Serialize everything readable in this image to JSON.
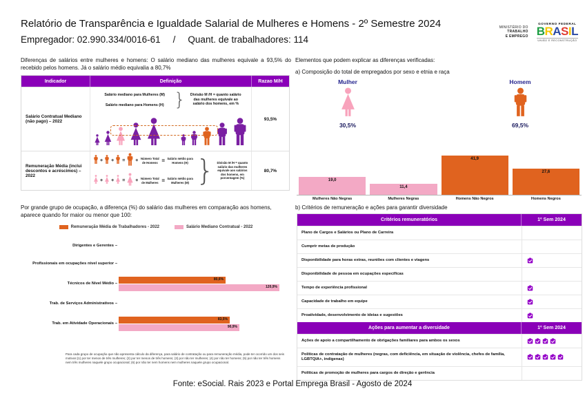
{
  "colors": {
    "header_purple": "#8A00B8",
    "figure_purple": "#7A1FA2",
    "pink": "#F8A3BC",
    "pink_bar": "#F3A9C5",
    "orange": "#E0631F",
    "navy": "#26268F",
    "dashed_box": "#D2691E",
    "mark_purple": "#9400C8"
  },
  "header": {
    "title": "Relatório de Transparência e Igualdade Salarial de Mulheres e Homens - 2º Semestre 2024",
    "employer": "Empregador: 02.990.334/0016-61",
    "slash": "/",
    "workers": "Quant. de trabalhadores: 114",
    "ministry_lines": [
      "MINISTÉRIO DO",
      "TRABALHO",
      "E EMPREGO"
    ],
    "gov_top": "GOVERNO FEDERAL",
    "gov_brand_letters": [
      {
        "ch": "B",
        "color": "#1E9E43"
      },
      {
        "ch": "R",
        "color": "#F6C700"
      },
      {
        "ch": "A",
        "color": "#2B49A3"
      },
      {
        "ch": "S",
        "color": "#E03C31"
      },
      {
        "ch": "I",
        "color": "#F6C700"
      },
      {
        "ch": "L",
        "color": "#2B49A3"
      }
    ],
    "gov_bottom": "UNIÃO E RECONSTRUÇÃO"
  },
  "left": {
    "intro": "Diferenças de salários entre mulheres e homens: O salário mediano das mulheres equivale a 93,5% do recebido pelos homens. Já o salário médio equivalia a 80,7%",
    "indicator_table": {
      "headers": [
        "Indicador",
        "Definição",
        "Razao M/H"
      ],
      "row1": {
        "indicator": "Salário Contratual Mediano (não pago) – 2022",
        "line_women": "Salário mediano para Mulheres (M)",
        "line_men": "Salário mediano para Homens (H)",
        "note": "Divisão M /H = quanto salário das mulheres equivale ao salário dos homens, em %",
        "ratio": "93,5%",
        "women_colors": [
          "#7A1FA2",
          "#7A1FA2",
          "#F8A3BC",
          "#7A1FA2",
          "#7A1FA2"
        ],
        "men_colors": [
          "#7A1FA2",
          "#7A1FA2",
          "#E0631F",
          "#7A1FA2",
          "#7A1FA2"
        ]
      },
      "row2": {
        "indicator": "Remuneração Média (inclui descontos e acréscimos) – 2022",
        "men": {
          "count": 3,
          "color": "#E0631F",
          "divisor": "Número Total de Homens",
          "result": "Salário médio para Homens (H)"
        },
        "women": {
          "count": 3,
          "color": "#F8A3BC",
          "divisor": "Número Total de Mulheres",
          "result": "Salário médio para Mulheres (M)"
        },
        "note": "Divisão M /H = quanto salário das mulheres equivale aos salários dos homens, em porcentagem (%)",
        "ratio": "80,7%"
      }
    },
    "occupation": {
      "heading": "Por grande grupo de ocupação, a diferença (%) do salário das mulheres em comparação aos homens, aparece quando for maior ou menor que 100:",
      "footnote": "Para cada grupo de ocupação que não apresenta cálculo da diferença, para salário de contratação ou para remuneração média, pode ter ocorrido um dos seis motivos:(1) por ter menos de três mulheres; (2) por ter menos de três homens; (3) por não ter mulheres; (4) por não ter homens; (5) por não ter três homens nem três mulheres naquele grupo ocupacional; (6) por não ter nem homens nem mulheres naquele grupo ocupacional."
    }
  },
  "right": {
    "elements_heading": "Elementos que podem explicar as diferenças verificadas:",
    "a_heading": "a) Composição do total de empregados por sexo e etnia e raça",
    "mulher": {
      "label": "Mulher",
      "pct": "30,5%"
    },
    "homem": {
      "label": "Homem",
      "pct": "69,5%"
    },
    "b_heading": "b) Critérios de remuneração e ações para garantir diversidade",
    "criteria_table": {
      "title": "Critérios remuneratórios",
      "period": "1º Sem 2024",
      "rows": [
        {
          "label": "Plano de Cargos e Salários ou Plano de Carreira",
          "marks": 0
        },
        {
          "label": "Cumprir metas de produção",
          "marks": 0
        },
        {
          "label": "Disponibilidade para horas extras, reuniões com clientes e viagens",
          "marks": 1
        },
        {
          "label": "Disponibilidade de pessoa em ocupações específicas",
          "marks": 0
        },
        {
          "label": "Tempo de experiência profissional",
          "marks": 1
        },
        {
          "label": "Capacidade de trabalho em equipe",
          "marks": 1
        },
        {
          "label": "Proatividade, desenvolvimento de ideias e sugestões",
          "marks": 1
        }
      ]
    },
    "actions_table": {
      "title": "Ações para aumentar a diversidade",
      "period": "1º Sem 2024",
      "rows": [
        {
          "label": "Ações de apoio a compartilhamento de obrigações familiares para ambos os sexos",
          "marks": 4
        },
        {
          "label": "Políticas de contratação de mulheres (negras, com deficiência, em situação de violência, chefes de família, LGBTQIA+, indígenas)",
          "marks": 5
        },
        {
          "label": "Políticas de promoção de mulheres para cargos de direção e gerência",
          "marks": 0
        }
      ]
    }
  },
  "chart_data": [
    {
      "id": "composition-by-sex-and-race",
      "type": "bar",
      "title": "a) Composição do total de empregados por sexo e etnia e raça",
      "categories": [
        "Mulheres Não Negras",
        "Mulheres Negras",
        "Homens Não Negros",
        "Homens Negros"
      ],
      "values": [
        19.0,
        11.4,
        41.9,
        27.6
      ],
      "value_labels": [
        "19,0",
        "11,4",
        "41,9",
        "27,6"
      ],
      "bar_colors": [
        "#F3A9C5",
        "#F3A9C5",
        "#E0631F",
        "#E0631F"
      ],
      "ylim": [
        0,
        45
      ],
      "grid": false,
      "annotations": {
        "mulher_total": "30,5%",
        "homem_total": "69,5%"
      }
    },
    {
      "id": "salary-gap-by-occupation-group",
      "type": "bar",
      "orientation": "horizontal",
      "title": "Por grande grupo de ocupação, a diferença (%) do salário das mulheres em comparação aos homens, aparece quando for maior ou menor que 100:",
      "categories": [
        "Dirigentes e Gerentes",
        "Profissionais em ocupações nível superior",
        "Técnicos de Nível Médio",
        "Trab. de Serviços Administrativos",
        "Trab. em Atividade Operacionais"
      ],
      "series": [
        {
          "name": "Remuneração Média de Trabalhadores - 2022",
          "color": "#E0631F",
          "values": [
            null,
            null,
            80.6,
            null,
            83.5
          ],
          "labels": [
            "",
            "",
            "80,6%",
            "",
            "83,5%"
          ]
        },
        {
          "name": "Salário Mediano Contratual - 2022",
          "color": "#F3A9C5",
          "values": [
            null,
            null,
            120.9,
            null,
            90.9
          ],
          "labels": [
            "",
            "",
            "120,9%",
            "",
            "90,9%"
          ]
        }
      ],
      "xlim": [
        0,
        130
      ],
      "grid": false,
      "legend_position": "top"
    }
  ],
  "footer": {
    "source": "Fonte: eSocial. Rais 2023 e Portal Emprega Brasil - Agosto de 2024"
  }
}
